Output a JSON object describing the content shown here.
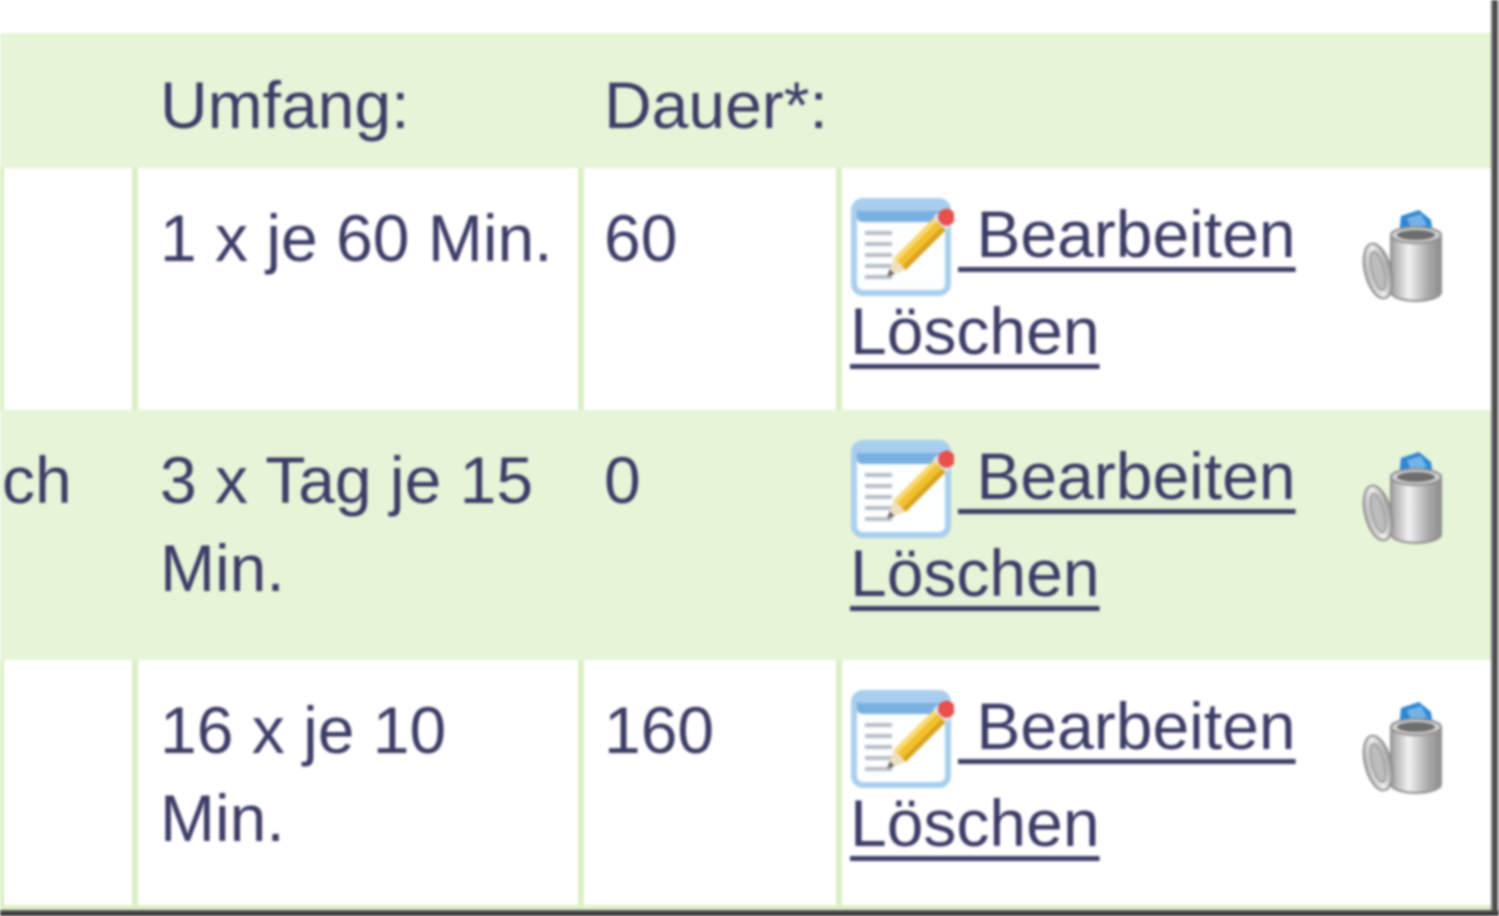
{
  "table": {
    "header": {
      "left": "",
      "umfang": "Umfang:",
      "dauer": "Dauer*:"
    },
    "rows": [
      {
        "left": "",
        "umfang": "1 x je 60 Min.",
        "dauer": "60",
        "edit_label": " Bearbeiten",
        "delete_label": "Löschen"
      },
      {
        "left": "ch",
        "umfang": "3 x Tag je 15\nMin.",
        "dauer": "0",
        "edit_label": " Bearbeiten",
        "delete_label": "Löschen"
      },
      {
        "left": "",
        "umfang": "16 x je 10\nMin.",
        "dauer": "160",
        "edit_label": " Bearbeiten",
        "delete_label": "Löschen"
      }
    ],
    "colors": {
      "row_green": "#e6f4d8",
      "separator_green": "#d9efc3",
      "text_navy": "#3c3c66",
      "title_bar_blue": "#79b0e2",
      "pencil_yellow": "#f2c12e",
      "eraser_red": "#e94f4b",
      "paper_blue": "#2f86d2"
    },
    "icons": {
      "edit": "edit-form-pencil-icon",
      "delete": "trash-bin-full-icon"
    }
  }
}
